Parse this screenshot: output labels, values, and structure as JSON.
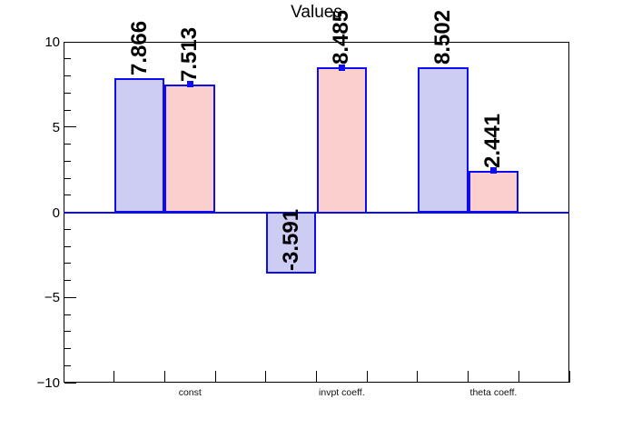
{
  "chart_data": {
    "type": "bar",
    "title": "Values",
    "ylim": [
      -10,
      10
    ],
    "n_bins": 10,
    "y_major_ticks": [
      {
        "value": 10,
        "label": "10"
      },
      {
        "value": 5,
        "label": "5"
      },
      {
        "value": 0,
        "label": "0"
      },
      {
        "value": -5,
        "label": "−5"
      },
      {
        "value": -10,
        "label": "−10"
      }
    ],
    "y_minor_step": 1,
    "categories": [
      {
        "label": "const",
        "bin": 2
      },
      {
        "label": "invpt coeff.",
        "bin": 5
      },
      {
        "label": "theta coeff.",
        "bin": 8
      }
    ],
    "series": [
      {
        "name": "blue-bars",
        "fill": "#cdcdf4",
        "bins": [
          1,
          4,
          7
        ],
        "values": [
          7.866,
          -3.591,
          8.502
        ],
        "value_labels": [
          "7.866",
          "-3.591",
          "8.502"
        ],
        "marker": "none"
      },
      {
        "name": "pink-bars",
        "fill": "#fccfcf",
        "bins": [
          2,
          5,
          8
        ],
        "values": [
          7.513,
          8.485,
          2.441
        ],
        "value_labels": [
          "7.513",
          "8.485",
          "2.441"
        ],
        "marker": "square"
      }
    ],
    "grid": false,
    "legend": "none"
  },
  "colors": {
    "line_blue": "#0d0df0",
    "marker_blue": "#0d0df0",
    "frame_black": "#000000",
    "text_black": "#000000",
    "background": "#ffffff"
  }
}
